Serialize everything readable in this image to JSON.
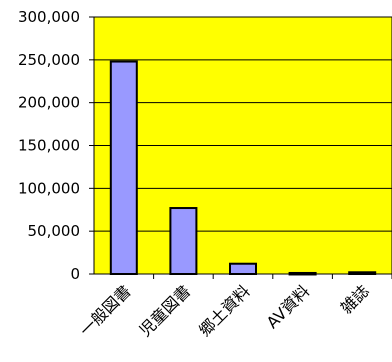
{
  "chart_data": {
    "type": "bar",
    "categories": [
      "一般図書",
      "児童図書",
      "郷土資料",
      "AV資料",
      "雑誌"
    ],
    "values": [
      248000,
      77000,
      12000,
      1200,
      2000
    ],
    "ylim": [
      0,
      300000
    ],
    "yticks": [
      0,
      50000,
      100000,
      150000,
      200000,
      250000,
      300000
    ],
    "ytick_labels": [
      "0",
      "50,000",
      "100,000",
      "150,000",
      "200,000",
      "250,000",
      "300,000"
    ],
    "title": "",
    "xlabel": "",
    "ylabel": "",
    "grid": true,
    "legend": false,
    "colors": {
      "plot_background": "#ffff00",
      "bar_fill": "#9999ff",
      "bar_stroke": "#000000",
      "gridline": "#000000"
    }
  }
}
